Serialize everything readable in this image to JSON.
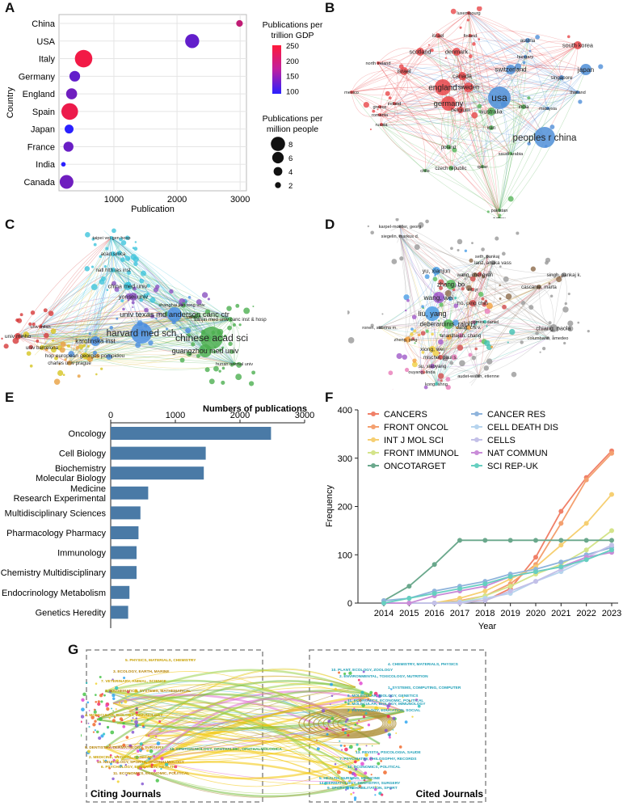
{
  "panels": {
    "a": "A",
    "b": "B",
    "c": "C",
    "d": "D",
    "e": "E",
    "f": "F",
    "g": "G"
  },
  "chart_data": [
    {
      "id": "A",
      "type": "scatter",
      "xlabel": "Publication",
      "ylabel": "Country",
      "xticks": [
        1000,
        2000,
        3000
      ],
      "xlim": [
        130,
        3100
      ],
      "categories": [
        "China",
        "USA",
        "Italy",
        "Germany",
        "England",
        "Spain",
        "Japan",
        "France",
        "India",
        "Canada"
      ],
      "values": [
        2990,
        2240,
        520,
        380,
        330,
        300,
        290,
        280,
        200,
        250
      ],
      "gdp_color": [
        200,
        125,
        240,
        125,
        135,
        235,
        80,
        130,
        80,
        135
      ],
      "pop_size": [
        2.1,
        6.7,
        8.8,
        4.6,
        4.8,
        8.3,
        3.5,
        4.2,
        0.8,
        6.5
      ],
      "legend_color_title": "Publications per trillion GDP",
      "legend_color_ticks": [
        250,
        200,
        150,
        100
      ],
      "legend_size_title": "Publications per million people",
      "legend_size_ticks": [
        8,
        6,
        4,
        2
      ]
    },
    {
      "id": "E",
      "type": "bar",
      "title": "Numbers of publications",
      "xticks": [
        0,
        1000,
        2000,
        3000
      ],
      "xlim": [
        0,
        3000
      ],
      "categories": [
        "Oncology",
        "Cell Biology",
        "Biochemistry Molecular Biology",
        "Medicine Research Experimental",
        "Multidisciplinary Sciences",
        "Pharmacology Pharmacy",
        "Immunology",
        "Chemistry Multidisciplinary",
        "Endocrinology Metabolism",
        "Genetics Heredity"
      ],
      "category_lines": [
        [
          "Oncology"
        ],
        [
          "Cell Biology"
        ],
        [
          "Biochemistry",
          "Molecular Biology"
        ],
        [
          "Medicine",
          "Research Experimental"
        ],
        [
          "Multidisciplinary Sciences"
        ],
        [
          "Pharmacology Pharmacy"
        ],
        [
          "Immunology"
        ],
        [
          "Chemistry Multidisciplinary"
        ],
        [
          "Endocrinology Metabolism"
        ],
        [
          "Genetics Heredity"
        ]
      ],
      "values": [
        2480,
        1470,
        1440,
        580,
        460,
        430,
        400,
        400,
        290,
        270
      ]
    },
    {
      "id": "F",
      "type": "line",
      "xlabel": "Year",
      "ylabel": "Frequency",
      "x": [
        2014,
        2015,
        2016,
        2017,
        2018,
        2019,
        2020,
        2021,
        2022,
        2023
      ],
      "ylim": [
        0,
        400
      ],
      "yticks": [
        0,
        100,
        200,
        300,
        400
      ],
      "series": [
        {
          "name": "CANCERS",
          "color": "#f08068",
          "values": [
            0,
            0,
            0,
            2,
            5,
            30,
            95,
            190,
            260,
            315
          ]
        },
        {
          "name": "FRONT ONCOL",
          "color": "#f4a070",
          "values": [
            0,
            0,
            0,
            5,
            15,
            40,
            80,
            165,
            255,
            310
          ]
        },
        {
          "name": "INT J MOL SCI",
          "color": "#f6cf72",
          "values": [
            0,
            0,
            0,
            10,
            25,
            50,
            75,
            120,
            165,
            225
          ]
        },
        {
          "name": "FRONT IMMUNOL",
          "color": "#d4e48a",
          "values": [
            0,
            0,
            0,
            3,
            15,
            35,
            60,
            80,
            110,
            150
          ]
        },
        {
          "name": "ONCOTARGET",
          "color": "#6aa88c",
          "values": [
            5,
            35,
            80,
            130,
            130,
            130,
            130,
            130,
            130,
            130
          ]
        },
        {
          "name": "CANCER RES",
          "color": "#8fb4dc",
          "values": [
            5,
            10,
            25,
            35,
            45,
            60,
            70,
            85,
            100,
            115
          ]
        },
        {
          "name": "CELL DEATH DIS",
          "color": "#b6d4ee",
          "values": [
            0,
            0,
            0,
            2,
            10,
            20,
            45,
            65,
            90,
            110
          ]
        },
        {
          "name": "CELLS",
          "color": "#c3c0e8",
          "values": [
            0,
            0,
            0,
            0,
            5,
            25,
            45,
            70,
            95,
            120
          ]
        },
        {
          "name": "NAT COMMUN",
          "color": "#c98cd8",
          "values": [
            0,
            0,
            15,
            25,
            35,
            55,
            65,
            75,
            95,
            105
          ]
        },
        {
          "name": "SCI REP-UK",
          "color": "#66cfc0",
          "values": [
            0,
            10,
            20,
            30,
            40,
            55,
            65,
            75,
            90,
            110
          ]
        }
      ]
    }
  ],
  "network_b": {
    "nodes": [
      "luxembourg",
      "israel",
      "finland",
      "austria",
      "south korea",
      "scotland",
      "denmark",
      "hungary",
      "north ireland",
      "israel",
      "canada",
      "switzerland",
      "singapore",
      "japan",
      "england",
      "sweden",
      "usa",
      "mexico",
      "ireland",
      "germany",
      "belgium",
      "australia",
      "india",
      "malaysia",
      "thailand",
      "greece",
      "romania",
      "russia",
      "iran",
      "peoples r china",
      "poland",
      "qatar",
      "saudi arabia",
      "chile",
      "czech republic",
      "pakistan",
      "turkey"
    ]
  },
  "network_c": {
    "nodes": [
      "taipei vet gen hosp",
      "acad sinica",
      "natl hlth res inst",
      "china med univ",
      "yonsei univ",
      "shanghai jiao tong univ",
      "univ texas md anderson canc ctr",
      "harvard med sch",
      "chinese acad sci",
      "tianjin med univ canc inst & hosp",
      "guangzhou med univ",
      "karolinska inst",
      "univ barcelona",
      "hop european georges pompidou",
      "charles univ prague",
      "univ minho",
      "hunan normal univ",
      "univ milan",
      "caltech"
    ]
  },
  "network_d": {
    "nodes": [
      "karpel-moeller, georg",
      "siegelin, markus d.",
      "seth, pankaj",
      "lanz, anaka vass",
      "yu, xianjun",
      "singh, pankaj k.",
      "wang, chengyan",
      "zhang, bo",
      "cascante, marta",
      "mi, yi",
      "wang, wei",
      "ho, ping chih",
      "liu, yang",
      "deberardinis, ralph j.",
      "dang, chi v.",
      "chiang, paola",
      "gomes, daniel",
      "ronen, sabrina m.",
      "ananthajah, chang",
      "xiong, wei",
      "mischel, paul s.",
      "su, xiaoyang",
      "audet-walsh, etienne",
      "kong, ahng",
      "columbano, amedeo",
      "ouyang, linda",
      "zheng, ping"
    ]
  },
  "overlay_g": {
    "citing_label": "Citing Journals",
    "cited_label": "Cited Journals",
    "left_labels": [
      "5. PHYSICS, MATERIALS, CHEMISTRY",
      "3. ECOLOGY, EARTH, MARINE",
      "7. VETERINARY, ANIMAL, SCIENCE",
      "1. MATHEMATICS, SYSTEMS, MATHEMATICAL",
      "4. MOLECULAR, BIOLOGY, IMMUNOLOGY",
      "9. DENTISTRY, DERMATOLOGY, SURGERY",
      "2. MEDICINE, MEDICAL, CLINICAL",
      "10. NEUROLOGY, SPORTS, OPHTHALMOLOGY",
      "6. PSYCHOLOGY, EDUCATION, HEALTH",
      "11. ECONOMICS, ECONOMIC, POLITICAL"
    ],
    "middle_labels": [
      "16. OPHTHALMOLOGY, OPHTHALMIC, OPHTHALMOLOGICA",
      "5. HEALTH, NURSING, MEDICINE",
      "14. DERMATOLOGY, DENTISTRY, SURGERY",
      "9. SPORTS, REHABILITATION, SPORT"
    ],
    "right_labels": [
      "4. CHEMISTRY, MATERIALS, PHYSICS",
      "10. PLANT, ECOLOGY, ZOOLOGY",
      "2. ENVIRONMENTAL, TOXICOLOGY, NUTRITION",
      "1. SYSTEMS, COMPUTING, COMPUTER",
      "6. MOLECULAR, BIOLOGY, GENETICS",
      "11. ECONOMICS, ECONOMIC, POLITICAL",
      "8. MOLECULAR, BIOLOGY, IMMUNOLOGY",
      "3. PSYCHOLOGY, EDUCATION, SOCIAL",
      "13. REVISTA, PSICOLOGIA, SAUDE",
      "7. PSYCHIATRY, PHILOSOPHY, RECORDS",
      "12. ECONOMICS, POLITICAL"
    ]
  }
}
